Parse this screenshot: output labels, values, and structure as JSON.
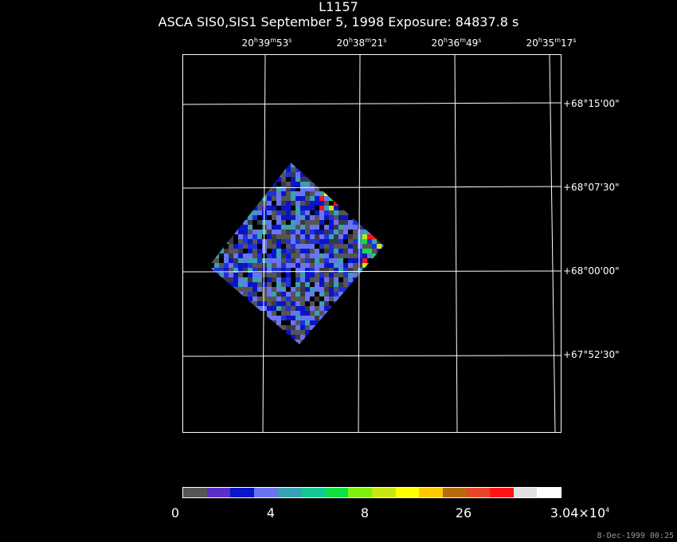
{
  "title": "L1157",
  "subtitle": "ASCA SIS0,SIS1 September 5, 1998 Exposure: 84837.8 s",
  "ra_ticks": [
    {
      "h": "20",
      "m": "39",
      "s": "53"
    },
    {
      "h": "20",
      "m": "38",
      "s": "21"
    },
    {
      "h": "20",
      "m": "36",
      "s": "49"
    },
    {
      "h": "20",
      "m": "35",
      "s": "17"
    }
  ],
  "dec_ticks": [
    "+68°15'00\"",
    "+68°07'30\"",
    "+68°00'00\"",
    "+67°52'30\""
  ],
  "colorbar": {
    "colors": [
      "#555555",
      "#5a2fc9",
      "#0a14c8",
      "#6a74f0",
      "#3aa0b4",
      "#14c896",
      "#10e040",
      "#7cf010",
      "#c8e614",
      "#ffff00",
      "#ffc800",
      "#b86a10",
      "#e64628",
      "#ff1414",
      "#e0e0e0",
      "#ffffff"
    ],
    "labels": [
      {
        "text": "0"
      },
      {
        "text": "4"
      },
      {
        "text": "8"
      },
      {
        "text": "26"
      },
      {
        "text": "3.04×10",
        "sup": "4"
      }
    ]
  },
  "timestamp": "8-Dec-1999 00:25"
}
